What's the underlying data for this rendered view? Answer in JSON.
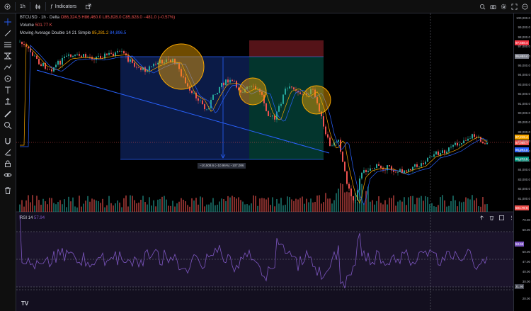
{
  "toolbar": {
    "interval": "1h",
    "indicators_label": "Indicators"
  },
  "legend": {
    "symbol": "BTCUSD · 1h · Delta",
    "ohlc": "O86,324.5 H86,460.0 L85,828.0 C85,828.0 −481.0 (−0.57%)",
    "volume_label": "Volume",
    "volume_value": "501.77 K",
    "ma_label": "Moving Average Double 14 21 Simple",
    "ma1_value": "85,281.2",
    "ma2_value": "84,896.5"
  },
  "rsi": {
    "label": "RSI 14",
    "value": "57.94",
    "axis": [
      "70.00",
      "60.00",
      "53.63",
      "50.00",
      "47.00",
      "40.00",
      "30.00",
      "20.00"
    ],
    "level_tag": "31.90"
  },
  "price_axis": {
    "ticks": [
      "100,000.0",
      "99,000.0",
      "98,000.0",
      "97,000.0",
      "96,000.0",
      "95,000.0",
      "94,000.0",
      "93,000.0",
      "92,000.0",
      "91,000.0",
      "90,000.0",
      "89,000.0",
      "88,000.0",
      "87,000.0",
      "86,000.0",
      "85,000.0",
      "84,000.0",
      "83,000.0",
      "82,000.0",
      "81,000.0"
    ],
    "tag_upper": "97,568.4",
    "tag_upper2": "95,954.4",
    "tag_price": "87,219.4",
    "tag_ma1": "87,088.7",
    "tag_ma2": "86,997.0",
    "tag_low": "85,273.5",
    "tag_vol": "501.78 K"
  },
  "measure": {
    "text": "−10,508.6 (−10.96%) −107,086"
  },
  "colors": {
    "up": "#26a69a",
    "down": "#ef5350",
    "ma1": "#f7a600",
    "ma2": "#2962ff",
    "rsi": "#7e57c2",
    "box_blue": "#2962ff",
    "box_teal": "#089981",
    "box_red": "#f23645"
  },
  "icons": {
    "left_tools": [
      "crosshair-icon",
      "trendline-icon",
      "fib-icon",
      "pattern-icon",
      "brush-icon",
      "text-icon",
      "measure-icon",
      "ruler-icon",
      "zoom-icon",
      "magnet-icon",
      "lock-icon",
      "lock-drawings-icon",
      "eye-icon",
      "trash-icon"
    ]
  }
}
